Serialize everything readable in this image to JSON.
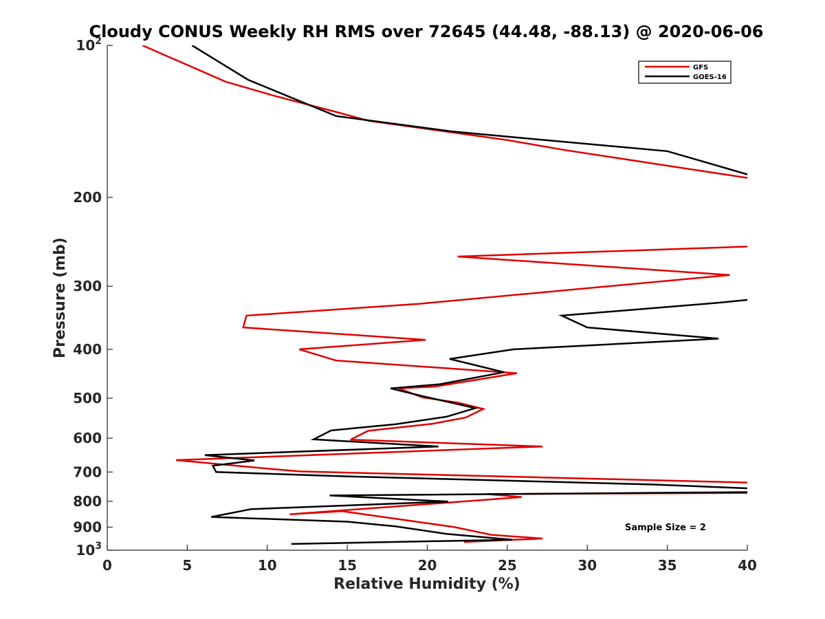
{
  "chart_data": {
    "type": "line",
    "title": "Cloudy CONUS Weekly RH RMS over 72645 (44.48, -88.13) @ 2020-06-06",
    "xlabel": "Relative Humidity (%)",
    "ylabel": "Pressure (mb)",
    "xlim": [
      0,
      40
    ],
    "ylim": [
      100,
      1000
    ],
    "y_scale": "log",
    "y_reversed": true,
    "grid": false,
    "legend_position": "top-right",
    "x_ticks": [
      "0",
      "5",
      "10",
      "15",
      "20",
      "25",
      "30",
      "35",
      "40"
    ],
    "y_ticks": [
      {
        "value": 100,
        "base": "10",
        "sup": "2"
      },
      {
        "value": 200,
        "base": "200",
        "sup": ""
      },
      {
        "value": 300,
        "base": "300",
        "sup": ""
      },
      {
        "value": 400,
        "base": "400",
        "sup": ""
      },
      {
        "value": 500,
        "base": "500",
        "sup": ""
      },
      {
        "value": 600,
        "base": "600",
        "sup": ""
      },
      {
        "value": 700,
        "base": "700",
        "sup": ""
      },
      {
        "value": 800,
        "base": "800",
        "sup": ""
      },
      {
        "value": 900,
        "base": "900",
        "sup": ""
      },
      {
        "value": 1000,
        "base": "10",
        "sup": "3"
      }
    ],
    "annotation": "Sample Size = 2",
    "series": [
      {
        "name": "GFS",
        "color": "#e00000",
        "points": [
          [
            2.2,
            100
          ],
          [
            7.4,
            118
          ],
          [
            10.5,
            126
          ],
          [
            14.5,
            136
          ],
          [
            16.3,
            141
          ],
          [
            25.0,
            154
          ],
          [
            28.5,
            161
          ],
          [
            40.5,
            184
          ],
          [
            null,
            null
          ],
          [
            40.5,
            250
          ],
          [
            21.9,
            262
          ],
          [
            38.9,
            285
          ],
          [
            19.5,
            325
          ],
          [
            8.7,
            343
          ],
          [
            8.5,
            362
          ],
          [
            19.9,
            383
          ],
          [
            12.0,
            400
          ],
          [
            14.3,
            421
          ],
          [
            25.6,
            446
          ],
          [
            20.5,
            474
          ],
          [
            18.2,
            478
          ],
          [
            19.7,
            498
          ],
          [
            21.9,
            510
          ],
          [
            23.5,
            525
          ],
          [
            22.4,
            546
          ],
          [
            20.3,
            562
          ],
          [
            16.3,
            580
          ],
          [
            15.2,
            604
          ],
          [
            27.2,
            623
          ],
          [
            4.3,
            663
          ],
          [
            6.5,
            673
          ],
          [
            9.5,
            687
          ],
          [
            12.0,
            698
          ],
          [
            40.5,
            735
          ],
          [
            40.5,
            770
          ],
          [
            23.7,
            774
          ],
          [
            25.9,
            785
          ],
          [
            11.4,
            849
          ],
          [
            14.7,
            837
          ],
          [
            18.9,
            874
          ],
          [
            21.7,
            900
          ],
          [
            24.0,
            932
          ],
          [
            27.2,
            948
          ],
          [
            22.3,
            963
          ]
        ]
      },
      {
        "name": "GOES-16",
        "color": "#000000",
        "points": [
          [
            5.3,
            100
          ],
          [
            8.8,
            117
          ],
          [
            14.3,
            138
          ],
          [
            21.5,
            148
          ],
          [
            25.4,
            152
          ],
          [
            35.0,
            162
          ],
          [
            40.5,
            182
          ],
          [
            null,
            null
          ],
          [
            40.5,
            318
          ],
          [
            38.4,
            323
          ],
          [
            28.4,
            343
          ],
          [
            30.0,
            362
          ],
          [
            38.2,
            381
          ],
          [
            25.4,
            400
          ],
          [
            21.4,
            418
          ],
          [
            24.8,
            444
          ],
          [
            20.8,
            469
          ],
          [
            17.7,
            478
          ],
          [
            19.8,
            496
          ],
          [
            23.0,
            523
          ],
          [
            21.2,
            544
          ],
          [
            18.0,
            563
          ],
          [
            14.0,
            579
          ],
          [
            12.9,
            603
          ],
          [
            20.7,
            623
          ],
          [
            6.1,
            648
          ],
          [
            9.2,
            664
          ],
          [
            6.6,
            680
          ],
          [
            6.8,
            700
          ],
          [
            14.9,
            714
          ],
          [
            34.0,
            741
          ],
          [
            40.5,
            755
          ],
          [
            40.5,
            767
          ],
          [
            13.9,
            779
          ],
          [
            21.3,
            801
          ],
          [
            9.0,
            829
          ],
          [
            6.5,
            859
          ],
          [
            15.0,
            878
          ],
          [
            18.0,
            897
          ],
          [
            21.2,
            928
          ],
          [
            25.3,
            953
          ],
          [
            11.5,
            972
          ]
        ]
      }
    ]
  }
}
